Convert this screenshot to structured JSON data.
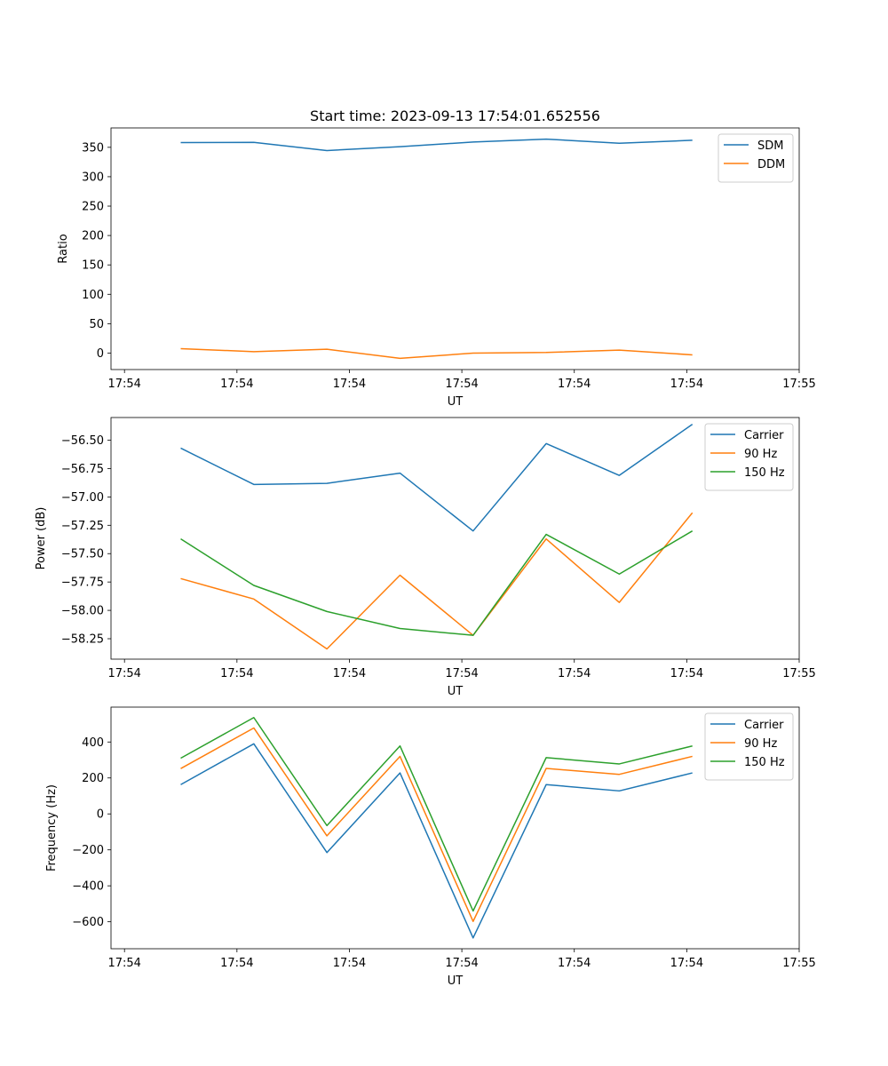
{
  "figure": {
    "title": "Start time: 2023-09-13 17:54:01.652556"
  },
  "chart_data": [
    {
      "type": "line",
      "title": "Start time: 2023-09-13 17:54:01.652556",
      "xlabel": "UT",
      "ylabel": "Ratio",
      "x": [
        0.5,
        1.15,
        1.8,
        2.45,
        3.1,
        3.75,
        4.4,
        5.05
      ],
      "xlim": [
        -0.12,
        6.0
      ],
      "x_ticks": [
        {
          "value": 0,
          "label": "17:54"
        },
        {
          "value": 1,
          "label": "17:54"
        },
        {
          "value": 2,
          "label": "17:54"
        },
        {
          "value": 3,
          "label": "17:54"
        },
        {
          "value": 4,
          "label": "17:54"
        },
        {
          "value": 5,
          "label": "17:54"
        },
        {
          "value": 6,
          "label": "17:55"
        }
      ],
      "ylim": [
        -28,
        383
      ],
      "y_ticks": [
        0,
        50,
        100,
        150,
        200,
        250,
        300,
        350
      ],
      "legend_position": "top-right",
      "series": [
        {
          "name": "SDM",
          "color": "#1f77b4",
          "values": [
            358,
            358.5,
            344.5,
            351,
            359,
            364,
            357,
            362
          ]
        },
        {
          "name": "DDM",
          "color": "#ff7f0e",
          "values": [
            7.5,
            2.5,
            6.5,
            -9,
            0,
            1,
            5,
            -3
          ]
        }
      ]
    },
    {
      "type": "line",
      "xlabel": "UT",
      "ylabel": "Power (dB)",
      "x": [
        0.5,
        1.15,
        1.8,
        2.45,
        3.1,
        3.75,
        4.4,
        5.05
      ],
      "xlim": [
        -0.12,
        6.0
      ],
      "x_ticks": [
        {
          "value": 0,
          "label": "17:54"
        },
        {
          "value": 1,
          "label": "17:54"
        },
        {
          "value": 2,
          "label": "17:54"
        },
        {
          "value": 3,
          "label": "17:54"
        },
        {
          "value": 4,
          "label": "17:54"
        },
        {
          "value": 5,
          "label": "17:54"
        },
        {
          "value": 6,
          "label": "17:55"
        }
      ],
      "ylim": [
        -58.43,
        -56.3
      ],
      "y_ticks": [
        -58.25,
        -58.0,
        -57.75,
        -57.5,
        -57.25,
        -57.0,
        -56.75,
        -56.5
      ],
      "y_tick_labels": [
        "−58.25",
        "−58.00",
        "−57.75",
        "−57.50",
        "−57.25",
        "−57.00",
        "−56.75",
        "−56.50"
      ],
      "legend_position": "top-right",
      "series": [
        {
          "name": "Carrier",
          "color": "#1f77b4",
          "values": [
            -56.57,
            -56.89,
            -56.88,
            -56.79,
            -57.3,
            -56.53,
            -56.81,
            -56.36
          ]
        },
        {
          "name": "90 Hz",
          "color": "#ff7f0e",
          "values": [
            -57.72,
            -57.9,
            -58.34,
            -57.69,
            -58.22,
            -57.37,
            -57.93,
            -57.14
          ]
        },
        {
          "name": "150 Hz",
          "color": "#2ca02c",
          "values": [
            -57.37,
            -57.78,
            -58.01,
            -58.16,
            -58.22,
            -57.33,
            -57.68,
            -57.3
          ]
        }
      ]
    },
    {
      "type": "line",
      "xlabel": "UT",
      "ylabel": "Frequency (Hz)",
      "x": [
        0.5,
        1.15,
        1.8,
        2.45,
        3.1,
        3.75,
        4.4,
        5.05
      ],
      "xlim": [
        -0.12,
        6.0
      ],
      "x_ticks": [
        {
          "value": 0,
          "label": "17:54"
        },
        {
          "value": 1,
          "label": "17:54"
        },
        {
          "value": 2,
          "label": "17:54"
        },
        {
          "value": 3,
          "label": "17:54"
        },
        {
          "value": 4,
          "label": "17:54"
        },
        {
          "value": 5,
          "label": "17:54"
        },
        {
          "value": 6,
          "label": "17:55"
        }
      ],
      "ylim": [
        -750,
        594
      ],
      "y_ticks": [
        -600,
        -400,
        -200,
        0,
        200,
        400
      ],
      "y_tick_labels": [
        "−600",
        "−400",
        "−200",
        "0",
        "200",
        "400"
      ],
      "legend_position": "top-right",
      "series": [
        {
          "name": "Carrier",
          "color": "#1f77b4",
          "values": [
            163,
            390,
            -215,
            228,
            -690,
            163,
            128,
            228
          ]
        },
        {
          "name": "90 Hz",
          "color": "#ff7f0e",
          "values": [
            252,
            478,
            -122,
            320,
            -598,
            253,
            220,
            320
          ]
        },
        {
          "name": "150 Hz",
          "color": "#2ca02c",
          "values": [
            310,
            536,
            -65,
            378,
            -540,
            313,
            278,
            378
          ]
        }
      ]
    }
  ]
}
